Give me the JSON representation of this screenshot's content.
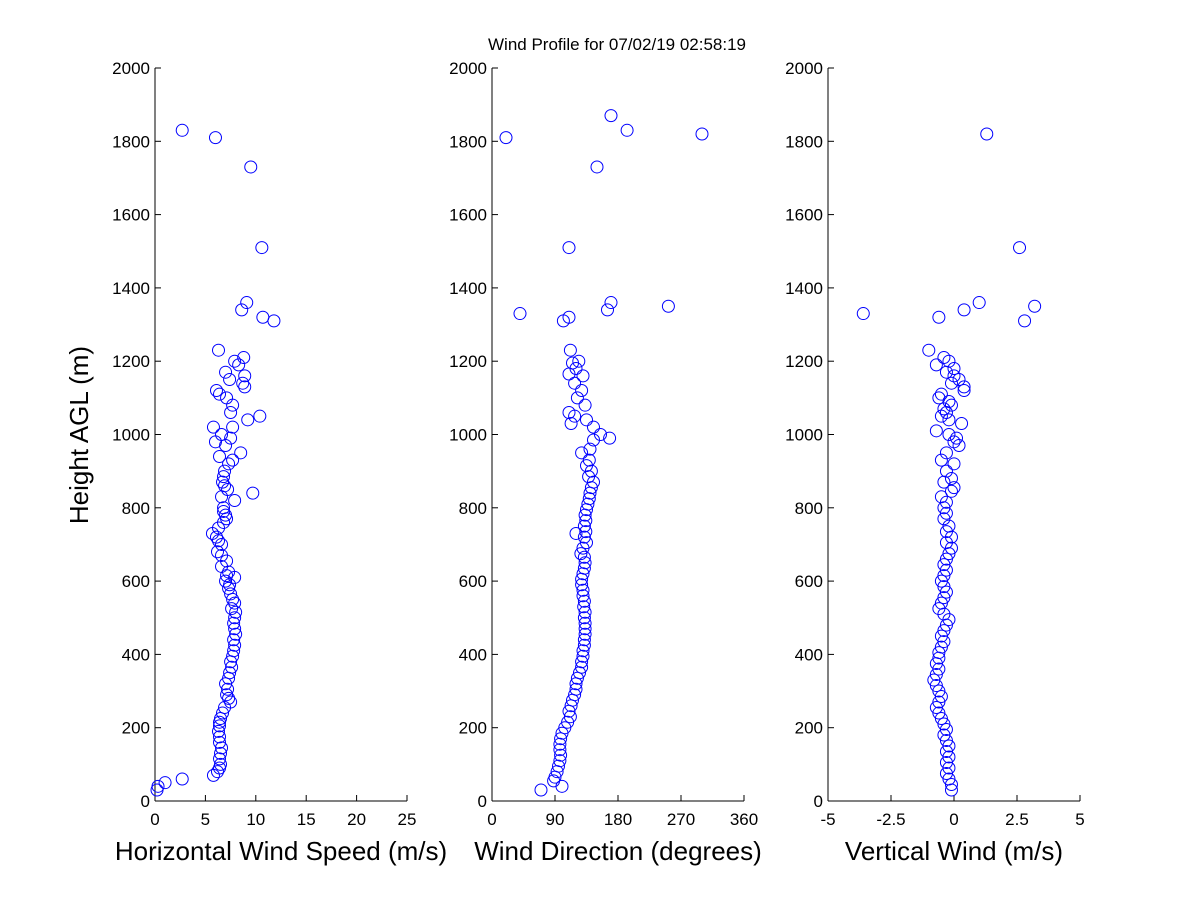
{
  "figure": {
    "title": "Wind Profile for  07/02/19 02:58:19",
    "marker_color": "#0000ff"
  },
  "chart_data": [
    {
      "type": "scatter",
      "xlabel": "Horizontal Wind Speed (m/s)",
      "ylabel": "Height AGL (m)",
      "xlim": [
        0,
        25
      ],
      "ylim": [
        0,
        2000
      ],
      "xticks": [
        "0",
        "5",
        "10",
        "15",
        "20",
        "25"
      ],
      "yticks": [
        "0",
        "200",
        "400",
        "600",
        "800",
        "1000",
        "1200",
        "1400",
        "1600",
        "1800",
        "2000"
      ],
      "points": [
        [
          2.7,
          1830
        ],
        [
          6.0,
          1810
        ],
        [
          9.5,
          1730
        ],
        [
          10.6,
          1510
        ],
        [
          9.1,
          1360
        ],
        [
          8.6,
          1340
        ],
        [
          10.7,
          1320
        ],
        [
          11.8,
          1310
        ],
        [
          6.3,
          1230
        ],
        [
          8.8,
          1210
        ],
        [
          7.9,
          1200
        ],
        [
          8.3,
          1190
        ],
        [
          7.0,
          1170
        ],
        [
          8.9,
          1160
        ],
        [
          7.4,
          1150
        ],
        [
          8.7,
          1140
        ],
        [
          8.9,
          1130
        ],
        [
          6.1,
          1120
        ],
        [
          6.4,
          1110
        ],
        [
          7.1,
          1100
        ],
        [
          7.7,
          1080
        ],
        [
          7.5,
          1060
        ],
        [
          10.4,
          1050
        ],
        [
          9.2,
          1040
        ],
        [
          7.7,
          1020
        ],
        [
          5.8,
          1020
        ],
        [
          6.6,
          1000
        ],
        [
          7.5,
          990
        ],
        [
          6.0,
          980
        ],
        [
          7.0,
          970
        ],
        [
          8.5,
          950
        ],
        [
          6.4,
          940
        ],
        [
          7.7,
          930
        ],
        [
          7.3,
          920
        ],
        [
          6.9,
          900
        ],
        [
          6.8,
          885
        ],
        [
          6.7,
          870
        ],
        [
          6.9,
          860
        ],
        [
          7.2,
          850
        ],
        [
          9.7,
          840
        ],
        [
          6.6,
          830
        ],
        [
          7.9,
          820
        ],
        [
          6.8,
          800
        ],
        [
          6.8,
          790
        ],
        [
          7.0,
          780
        ],
        [
          7.1,
          770
        ],
        [
          6.8,
          760
        ],
        [
          6.3,
          745
        ],
        [
          5.7,
          730
        ],
        [
          6.1,
          720
        ],
        [
          6.3,
          710
        ],
        [
          6.6,
          700
        ],
        [
          6.2,
          680
        ],
        [
          6.6,
          670
        ],
        [
          7.1,
          655
        ],
        [
          6.6,
          640
        ],
        [
          7.3,
          625
        ],
        [
          7.1,
          615
        ],
        [
          7.9,
          610
        ],
        [
          7.0,
          600
        ],
        [
          7.4,
          590
        ],
        [
          7.3,
          580
        ],
        [
          7.5,
          565
        ],
        [
          7.7,
          550
        ],
        [
          7.9,
          540
        ],
        [
          7.6,
          525
        ],
        [
          8.0,
          515
        ],
        [
          7.9,
          500
        ],
        [
          7.8,
          485
        ],
        [
          7.9,
          470
        ],
        [
          8.0,
          455
        ],
        [
          7.8,
          440
        ],
        [
          7.9,
          425
        ],
        [
          7.8,
          410
        ],
        [
          7.7,
          395
        ],
        [
          7.5,
          380
        ],
        [
          7.6,
          365
        ],
        [
          7.4,
          350
        ],
        [
          7.3,
          335
        ],
        [
          7.0,
          320
        ],
        [
          7.2,
          305
        ],
        [
          7.1,
          290
        ],
        [
          7.3,
          280
        ],
        [
          7.5,
          270
        ],
        [
          6.9,
          255
        ],
        [
          6.7,
          240
        ],
        [
          6.5,
          225
        ],
        [
          6.4,
          215
        ],
        [
          6.4,
          205
        ],
        [
          6.3,
          190
        ],
        [
          6.4,
          175
        ],
        [
          6.4,
          160
        ],
        [
          6.6,
          145
        ],
        [
          6.5,
          130
        ],
        [
          6.4,
          115
        ],
        [
          6.5,
          100
        ],
        [
          6.4,
          90
        ],
        [
          6.2,
          80
        ],
        [
          5.8,
          70
        ],
        [
          2.7,
          60
        ],
        [
          1.0,
          50
        ],
        [
          0.3,
          40
        ],
        [
          0.2,
          30
        ]
      ]
    },
    {
      "type": "scatter",
      "xlabel": "Wind Direction (degrees)",
      "xlim": [
        0,
        360
      ],
      "ylim": [
        0,
        2000
      ],
      "xticks": [
        "0",
        "90",
        "180",
        "270",
        "360"
      ],
      "yticks": [
        "0",
        "200",
        "400",
        "600",
        "800",
        "1000",
        "1200",
        "1400",
        "1600",
        "1800",
        "2000"
      ],
      "points": [
        [
          20,
          1810
        ],
        [
          170,
          1870
        ],
        [
          193,
          1830
        ],
        [
          300,
          1820
        ],
        [
          150,
          1730
        ],
        [
          110,
          1510
        ],
        [
          170,
          1360
        ],
        [
          165,
          1340
        ],
        [
          252,
          1350
        ],
        [
          40,
          1330
        ],
        [
          110,
          1320
        ],
        [
          102,
          1310
        ],
        [
          112,
          1230
        ],
        [
          124,
          1200
        ],
        [
          115,
          1195
        ],
        [
          120,
          1180
        ],
        [
          110,
          1165
        ],
        [
          130,
          1160
        ],
        [
          118,
          1140
        ],
        [
          128,
          1120
        ],
        [
          122,
          1100
        ],
        [
          133,
          1080
        ],
        [
          110,
          1060
        ],
        [
          118,
          1050
        ],
        [
          135,
          1040
        ],
        [
          113,
          1030
        ],
        [
          145,
          1020
        ],
        [
          155,
          1000
        ],
        [
          168,
          990
        ],
        [
          145,
          985
        ],
        [
          140,
          960
        ],
        [
          128,
          950
        ],
        [
          139,
          930
        ],
        [
          135,
          915
        ],
        [
          142,
          900
        ],
        [
          138,
          885
        ],
        [
          145,
          870
        ],
        [
          142,
          855
        ],
        [
          140,
          840
        ],
        [
          139,
          825
        ],
        [
          137,
          810
        ],
        [
          135,
          795
        ],
        [
          133,
          780
        ],
        [
          134,
          765
        ],
        [
          132,
          750
        ],
        [
          134,
          735
        ],
        [
          120,
          730
        ],
        [
          132,
          720
        ],
        [
          135,
          705
        ],
        [
          130,
          690
        ],
        [
          127,
          675
        ],
        [
          132,
          665
        ],
        [
          133,
          650
        ],
        [
          132,
          635
        ],
        [
          130,
          620
        ],
        [
          128,
          605
        ],
        [
          128,
          590
        ],
        [
          130,
          575
        ],
        [
          130,
          560
        ],
        [
          132,
          545
        ],
        [
          131,
          530
        ],
        [
          133,
          515
        ],
        [
          132,
          500
        ],
        [
          133,
          485
        ],
        [
          133,
          470
        ],
        [
          133,
          455
        ],
        [
          132,
          440
        ],
        [
          132,
          425
        ],
        [
          130,
          410
        ],
        [
          130,
          395
        ],
        [
          128,
          380
        ],
        [
          128,
          365
        ],
        [
          125,
          350
        ],
        [
          122,
          335
        ],
        [
          120,
          320
        ],
        [
          120,
          305
        ],
        [
          118,
          290
        ],
        [
          115,
          275
        ],
        [
          113,
          260
        ],
        [
          110,
          245
        ],
        [
          112,
          230
        ],
        [
          108,
          215
        ],
        [
          104,
          200
        ],
        [
          100,
          185
        ],
        [
          98,
          170
        ],
        [
          97,
          155
        ],
        [
          97,
          140
        ],
        [
          98,
          125
        ],
        [
          97,
          110
        ],
        [
          95,
          95
        ],
        [
          93,
          80
        ],
        [
          90,
          65
        ],
        [
          88,
          55
        ],
        [
          100,
          40
        ],
        [
          70,
          30
        ]
      ]
    },
    {
      "type": "scatter",
      "xlabel": "Vertical Wind (m/s)",
      "xlim": [
        -5,
        5
      ],
      "ylim": [
        0,
        2000
      ],
      "xticks": [
        "-5",
        "-2.5",
        "0",
        "2.5",
        "5"
      ],
      "yticks": [
        "0",
        "200",
        "400",
        "600",
        "800",
        "1000",
        "1200",
        "1400",
        "1600",
        "1800",
        "2000"
      ],
      "points": [
        [
          1.3,
          1820
        ],
        [
          2.6,
          1510
        ],
        [
          1.0,
          1360
        ],
        [
          0.4,
          1340
        ],
        [
          3.2,
          1350
        ],
        [
          2.8,
          1310
        ],
        [
          -3.6,
          1330
        ],
        [
          -0.6,
          1320
        ],
        [
          -1.0,
          1230
        ],
        [
          -0.4,
          1210
        ],
        [
          -0.2,
          1200
        ],
        [
          -0.7,
          1190
        ],
        [
          0.0,
          1180
        ],
        [
          -0.3,
          1170
        ],
        [
          0.0,
          1160
        ],
        [
          0.2,
          1150
        ],
        [
          -0.1,
          1140
        ],
        [
          0.4,
          1130
        ],
        [
          0.4,
          1120
        ],
        [
          -0.5,
          1110
        ],
        [
          -0.6,
          1100
        ],
        [
          -0.2,
          1090
        ],
        [
          -0.4,
          1070
        ],
        [
          -0.1,
          1080
        ],
        [
          -0.3,
          1060
        ],
        [
          -0.5,
          1050
        ],
        [
          -0.2,
          1040
        ],
        [
          0.3,
          1030
        ],
        [
          -0.7,
          1010
        ],
        [
          -0.2,
          1000
        ],
        [
          0.1,
          990
        ],
        [
          0.0,
          980
        ],
        [
          0.2,
          970
        ],
        [
          -0.3,
          950
        ],
        [
          -0.5,
          930
        ],
        [
          0.0,
          920
        ],
        [
          -0.3,
          900
        ],
        [
          -0.1,
          880
        ],
        [
          -0.4,
          870
        ],
        [
          0.0,
          855
        ],
        [
          -0.1,
          845
        ],
        [
          -0.5,
          830
        ],
        [
          -0.3,
          815
        ],
        [
          -0.4,
          800
        ],
        [
          -0.3,
          785
        ],
        [
          -0.4,
          770
        ],
        [
          -0.2,
          750
        ],
        [
          -0.3,
          735
        ],
        [
          -0.1,
          720
        ],
        [
          -0.3,
          705
        ],
        [
          -0.1,
          690
        ],
        [
          -0.2,
          675
        ],
        [
          -0.3,
          660
        ],
        [
          -0.4,
          645
        ],
        [
          -0.3,
          630
        ],
        [
          -0.4,
          615
        ],
        [
          -0.5,
          600
        ],
        [
          -0.4,
          585
        ],
        [
          -0.3,
          570
        ],
        [
          -0.4,
          555
        ],
        [
          -0.5,
          540
        ],
        [
          -0.6,
          525
        ],
        [
          -0.4,
          510
        ],
        [
          -0.2,
          495
        ],
        [
          -0.3,
          480
        ],
        [
          -0.4,
          465
        ],
        [
          -0.5,
          450
        ],
        [
          -0.4,
          435
        ],
        [
          -0.5,
          420
        ],
        [
          -0.6,
          405
        ],
        [
          -0.6,
          390
        ],
        [
          -0.7,
          375
        ],
        [
          -0.6,
          360
        ],
        [
          -0.7,
          345
        ],
        [
          -0.8,
          330
        ],
        [
          -0.7,
          315
        ],
        [
          -0.6,
          300
        ],
        [
          -0.5,
          285
        ],
        [
          -0.6,
          270
        ],
        [
          -0.7,
          255
        ],
        [
          -0.6,
          240
        ],
        [
          -0.5,
          225
        ],
        [
          -0.4,
          210
        ],
        [
          -0.3,
          195
        ],
        [
          -0.4,
          180
        ],
        [
          -0.3,
          165
        ],
        [
          -0.2,
          150
        ],
        [
          -0.3,
          135
        ],
        [
          -0.2,
          120
        ],
        [
          -0.3,
          105
        ],
        [
          -0.2,
          90
        ],
        [
          -0.3,
          75
        ],
        [
          -0.2,
          60
        ],
        [
          -0.1,
          45
        ],
        [
          -0.1,
          30
        ]
      ]
    }
  ]
}
